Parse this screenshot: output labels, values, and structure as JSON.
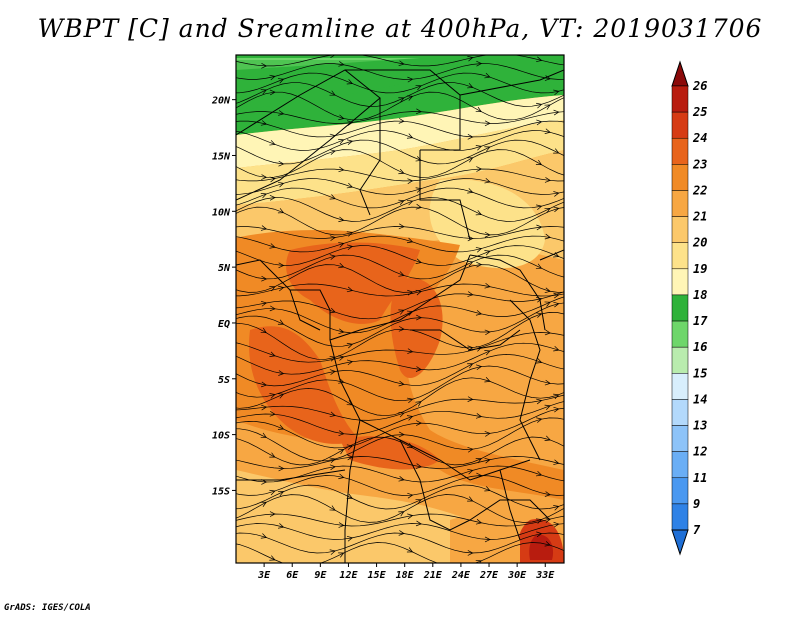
{
  "title": "WBPT [C] and Sreamline at 400hPa, VT: 2019031706",
  "credit": "GrADS: IGES/COLA",
  "map": {
    "lon_range": [
      0,
      35
    ],
    "lat_range": [
      -21.5,
      24
    ],
    "lat_ticks": [
      {
        "value": 20,
        "label": "20N"
      },
      {
        "value": 15,
        "label": "15N"
      },
      {
        "value": 10,
        "label": "10N"
      },
      {
        "value": 5,
        "label": "5N"
      },
      {
        "value": 0,
        "label": "EQ"
      },
      {
        "value": -5,
        "label": "5S"
      },
      {
        "value": -10,
        "label": "10S"
      },
      {
        "value": -15,
        "label": "15S"
      }
    ],
    "lon_ticks": [
      {
        "value": 3,
        "label": "3E"
      },
      {
        "value": 6,
        "label": "6E"
      },
      {
        "value": 9,
        "label": "9E"
      },
      {
        "value": 12,
        "label": "12E"
      },
      {
        "value": 15,
        "label": "15E"
      },
      {
        "value": 18,
        "label": "18E"
      },
      {
        "value": 21,
        "label": "21E"
      },
      {
        "value": 24,
        "label": "24E"
      },
      {
        "value": 27,
        "label": "27E"
      },
      {
        "value": 30,
        "label": "30E"
      },
      {
        "value": 33,
        "label": "33E"
      }
    ]
  },
  "colorbar": {
    "labels": [
      "7",
      "9",
      "11",
      "12",
      "13",
      "14",
      "15",
      "16",
      "17",
      "18",
      "19",
      "20",
      "21",
      "22",
      "23",
      "24",
      "25",
      "26"
    ],
    "colors": [
      "#1f6fd6",
      "#2f82e6",
      "#4a98f0",
      "#6aaef5",
      "#8dc3f8",
      "#b3d9fb",
      "#d8eefc",
      "#b9ecae",
      "#6ed66a",
      "#2fb23a",
      "#fff5b6",
      "#fde28a",
      "#fbc86a",
      "#f7a743",
      "#f08a25",
      "#e8641b",
      "#d63b14",
      "#b81c0f",
      "#8b0a0a"
    ]
  }
}
